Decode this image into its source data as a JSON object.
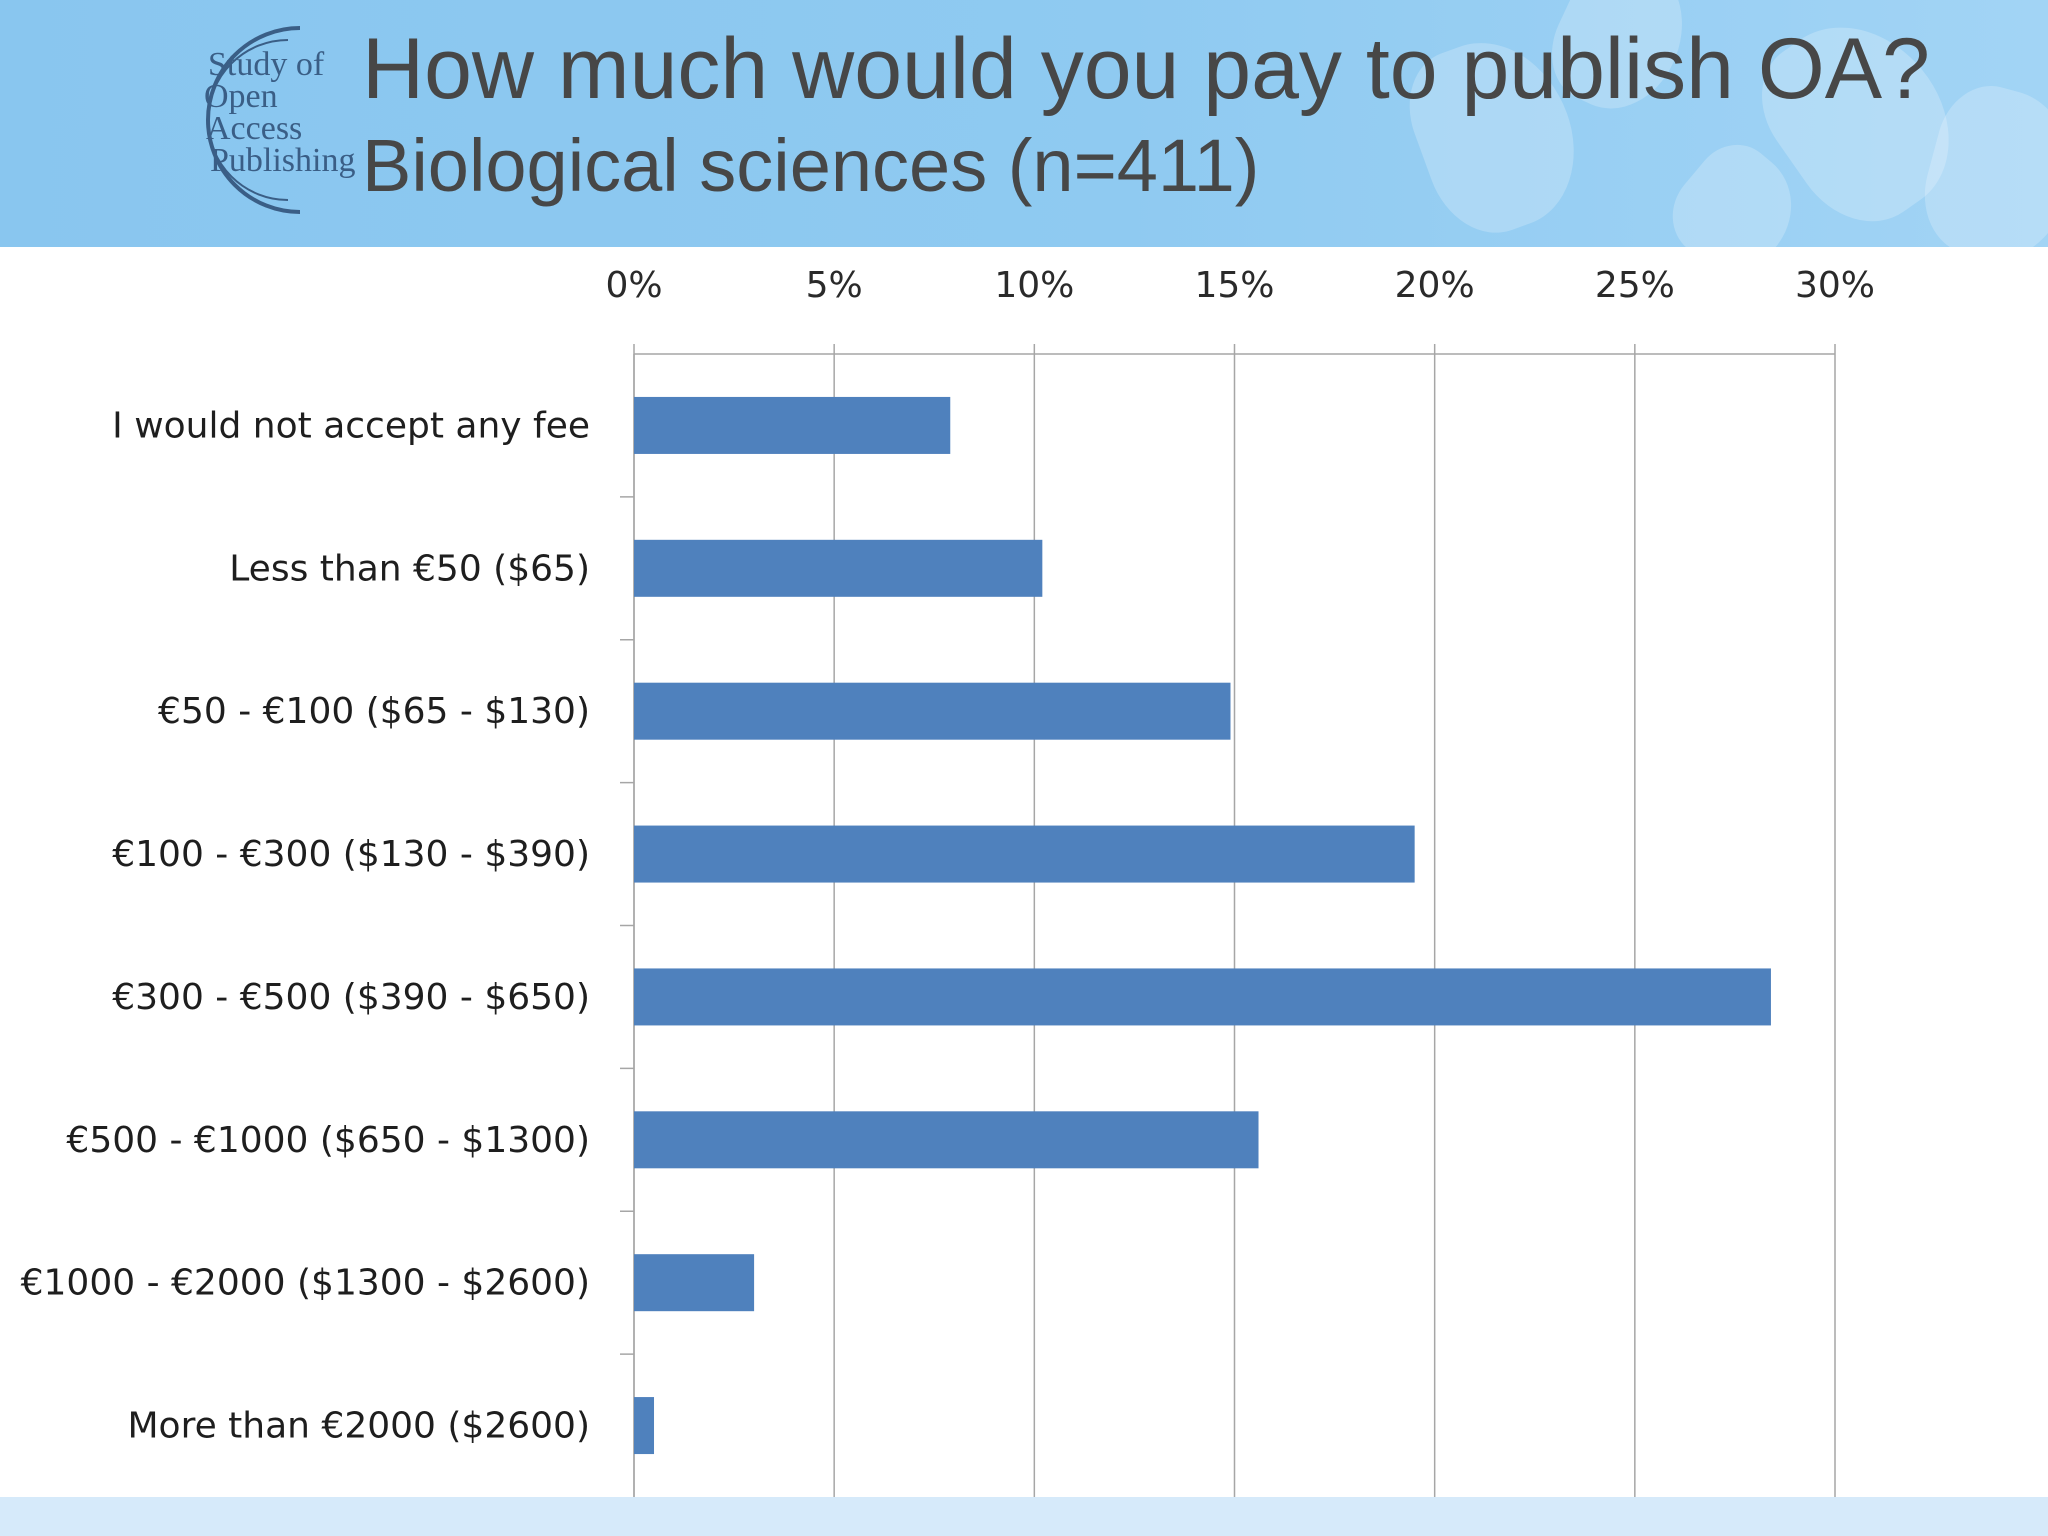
{
  "slide": {
    "title": "How much would you pay to publish OA?",
    "subtitle": "Biological sciences (n=411)"
  },
  "logo": {
    "line1": "Study of",
    "line2": "Open",
    "line3": "Access",
    "line4": "Publishing",
    "color": "#3a5e86"
  },
  "colors": {
    "header_background": "#8fcaf1",
    "bar": "#4f81bd",
    "gridline": "#a6a6a6"
  },
  "chart_data": {
    "type": "bar",
    "orientation": "horizontal",
    "categories": [
      "I would not accept any fee",
      "Less than €50 ($65)",
      "€50 - €100 ($65 - $130)",
      "€100 - €300 ($130 - $390)",
      "€300 - €500 ($390 - $650)",
      "€500 - €1000 ($650 - $1300)",
      "€1000 - €2000 ($1300 - $2600)",
      "More than €2000 ($2600)"
    ],
    "values": [
      7.9,
      10.2,
      14.9,
      19.5,
      28.4,
      15.6,
      3.0,
      0.5
    ],
    "value_unit": "%",
    "xlim": [
      0,
      30
    ],
    "xticks": [
      "0%",
      "5%",
      "10%",
      "15%",
      "20%",
      "25%",
      "30%"
    ],
    "xaxis_position": "top",
    "grid": "vertical",
    "legend": "none",
    "title": "",
    "xlabel": "",
    "ylabel": ""
  }
}
